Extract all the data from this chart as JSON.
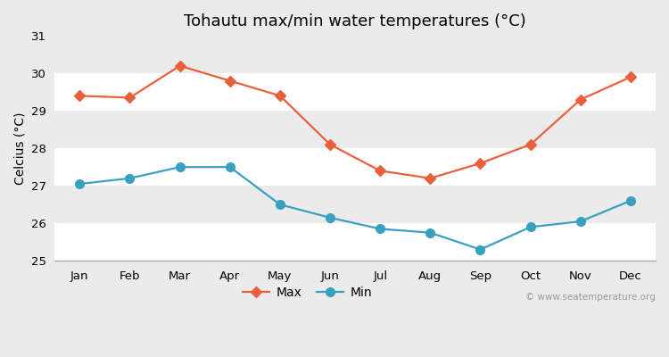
{
  "title": "Tohautu max/min water temperatures (°C)",
  "ylabel": "Celcius (°C)",
  "months": [
    "Jan",
    "Feb",
    "Mar",
    "Apr",
    "May",
    "Jun",
    "Jul",
    "Aug",
    "Sep",
    "Oct",
    "Nov",
    "Dec"
  ],
  "max_temps": [
    29.4,
    29.35,
    30.2,
    29.8,
    29.4,
    28.1,
    27.4,
    27.2,
    27.6,
    28.1,
    29.3,
    29.9
  ],
  "min_temps": [
    27.05,
    27.2,
    27.5,
    27.5,
    26.5,
    26.15,
    25.85,
    25.75,
    25.3,
    25.9,
    26.05,
    26.6
  ],
  "max_color": "#e8603c",
  "min_color": "#3aa0c0",
  "outer_bg": "#ebebeb",
  "band_colors": [
    "#ffffff",
    "#ebebeb"
  ],
  "ylim": [
    25,
    31
  ],
  "yticks": [
    25,
    26,
    27,
    28,
    29,
    30,
    31
  ],
  "watermark": "© www.seatemperature.org",
  "max_marker": "D",
  "min_marker": "o",
  "marker_size_max": 6,
  "marker_size_min": 7,
  "line_width": 1.6,
  "title_fontsize": 13,
  "axis_label_fontsize": 10,
  "tick_fontsize": 9.5,
  "legend_fontsize": 10
}
